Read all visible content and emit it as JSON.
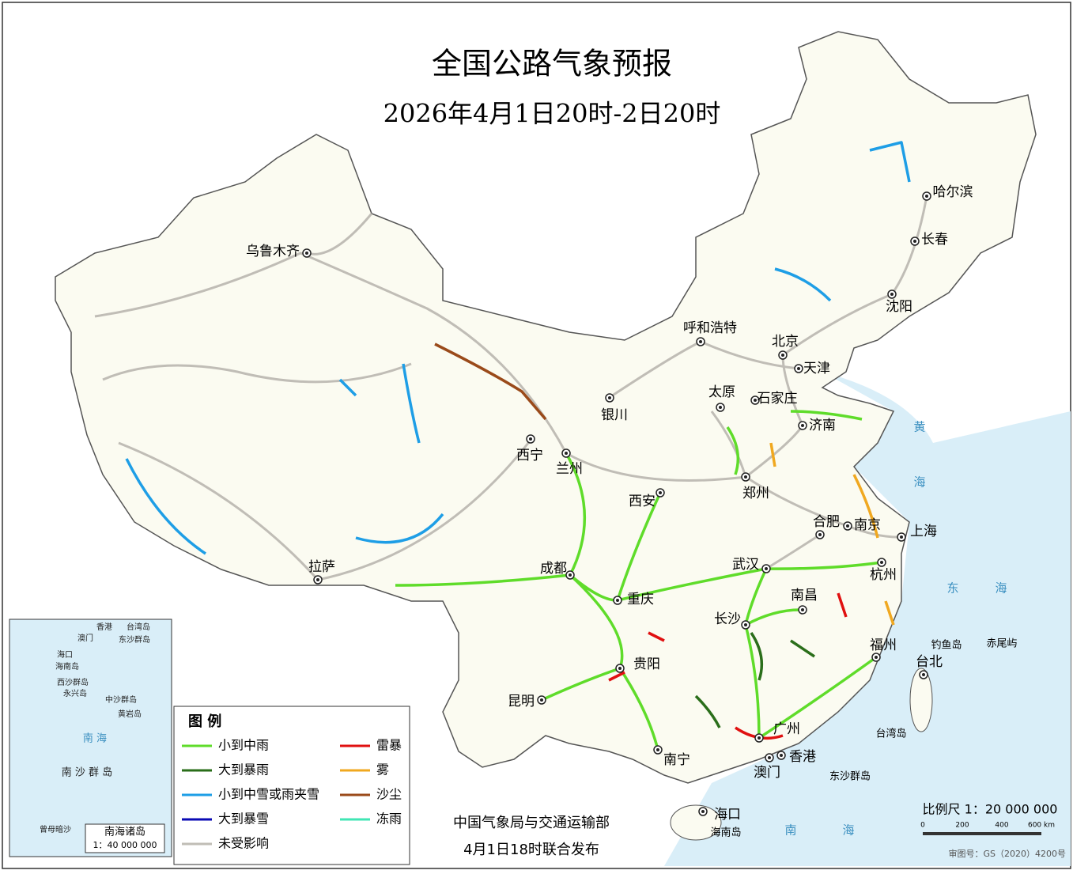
{
  "header": {
    "title": "全国公路气象预报",
    "subtitle": "2026年4月1日20时-2日20时"
  },
  "cities": [
    "乌鲁木齐",
    "呼和浩特",
    "北京",
    "天津",
    "沈阳",
    "长春",
    "哈尔滨",
    "银川",
    "太原",
    "石家庄",
    "济南",
    "西宁",
    "兰州",
    "西安",
    "郑州",
    "合肥",
    "南京",
    "上海",
    "杭州",
    "拉萨",
    "成都",
    "重庆",
    "武汉",
    "南昌",
    "长沙",
    "福州",
    "台北",
    "贵阳",
    "昆明",
    "广州",
    "南宁",
    "澳门",
    "香港",
    "海口"
  ],
  "places": [
    "海南岛",
    "钓鱼岛",
    "赤尾屿",
    "台湾岛",
    "东沙群岛"
  ],
  "seas": [
    "黄",
    "海",
    "东",
    "海",
    "南",
    "海"
  ],
  "legend": {
    "title": "图 例",
    "items": [
      {
        "label": "小到中雨",
        "color": "#5fdc2a"
      },
      {
        "label": "雷暴",
        "color": "#e01010"
      },
      {
        "label": "大到暴雨",
        "color": "#2a6e1a"
      },
      {
        "label": "雾",
        "color": "#f0a820"
      },
      {
        "label": "小到中雪或雨夹雪",
        "color": "#1e9ee6"
      },
      {
        "label": "沙尘",
        "color": "#9a4a1a"
      },
      {
        "label": "大到暴雪",
        "color": "#0a0ab4"
      },
      {
        "label": "冻雨",
        "color": "#40e6b4"
      },
      {
        "label": "未受影响",
        "color": "#c0bdb6"
      }
    ]
  },
  "publisher": {
    "line1": "中国气象局与交通运输部",
    "line2": "4月1日18时联合发布"
  },
  "scale": {
    "label": "比例尺 1：20 000 000",
    "ticks": [
      "0",
      "200",
      "400",
      "600 km"
    ]
  },
  "review": "审图号：GS（2020）4200号",
  "inset": {
    "labels": [
      "香港",
      "台湾岛",
      "澳门",
      "东沙群岛",
      "海口",
      "海南岛",
      "西沙群岛",
      "永兴岛",
      "中沙群岛",
      "黄岩岛",
      "南 海",
      "南 沙 群 岛",
      "曾母暗沙"
    ],
    "title": "南海诸岛",
    "scale": "1：40 000 000"
  }
}
